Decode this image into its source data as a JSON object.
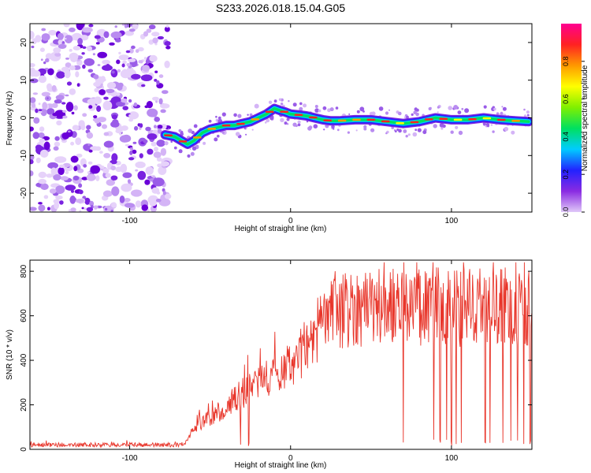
{
  "title": "S233.2026.018.15.04.G05",
  "chart_data": [
    {
      "type": "heatmap",
      "xlabel": "Height of straight line (km)",
      "ylabel": "Frequency (Hz)",
      "xlim": [
        -162,
        150
      ],
      "ylim": [
        -25,
        25
      ],
      "xticks": [
        -100,
        0,
        100
      ],
      "yticks": [
        -20,
        -10,
        0,
        10,
        20
      ],
      "noise_region_x": [
        -162,
        -76
      ],
      "ridge": {
        "x": [
          -78,
          -72,
          -68,
          -64,
          -60,
          -55,
          -50,
          -45,
          -40,
          -35,
          -30,
          -25,
          -20,
          -15,
          -10,
          -7,
          -3,
          0,
          5,
          10,
          15,
          20,
          25,
          30,
          40,
          50,
          60,
          70,
          80,
          90,
          100,
          110,
          120,
          130,
          140,
          148
        ],
        "freq": [
          -4.5,
          -5.0,
          -6.0,
          -7.0,
          -6.0,
          -4.0,
          -3.0,
          -2.5,
          -2.0,
          -2.0,
          -1.5,
          -1.0,
          0.0,
          1.0,
          2.5,
          2.0,
          1.5,
          1.0,
          0.8,
          0.5,
          0.0,
          -0.5,
          -0.8,
          -0.8,
          -0.5,
          -0.5,
          -1.0,
          -1.5,
          -1.0,
          0.0,
          -0.5,
          -0.5,
          0.0,
          -0.5,
          -0.8,
          -1.0
        ]
      }
    },
    {
      "type": "line",
      "xlabel": "Height of straight line (km)",
      "ylabel": "SNR (10 * v/v)",
      "xlim": [
        -162,
        150
      ],
      "ylim": [
        0,
        850
      ],
      "xticks": [
        -100,
        0,
        100
      ],
      "yticks": [
        0,
        200,
        400,
        600,
        800
      ],
      "color": "#e8352a",
      "trend": {
        "x": [
          -162,
          -70,
          -65,
          -60,
          -50,
          -40,
          -30,
          -20,
          -10,
          0,
          10,
          20,
          30,
          40,
          60,
          80,
          100,
          120,
          150
        ],
        "y": [
          20,
          20,
          30,
          100,
          140,
          190,
          250,
          300,
          340,
          380,
          460,
          580,
          620,
          640,
          645,
          640,
          640,
          640,
          640
        ]
      },
      "dropouts_x": [
        -31,
        -26,
        70,
        89,
        93,
        97,
        100,
        103,
        106,
        121,
        124,
        132,
        137,
        141,
        145,
        149
      ]
    }
  ],
  "colorbar": {
    "label": "Normalized spectral amplitude",
    "ticks": [
      "0.0",
      "0.2",
      "0.4",
      "0.6",
      "0.8"
    ],
    "range": [
      0,
      1
    ],
    "stops": [
      "#e0c8f8",
      "#8a2be2",
      "#2222ff",
      "#00ccff",
      "#00e060",
      "#80f000",
      "#ffff00",
      "#ff9900",
      "#ff2222",
      "#ff0090"
    ]
  }
}
